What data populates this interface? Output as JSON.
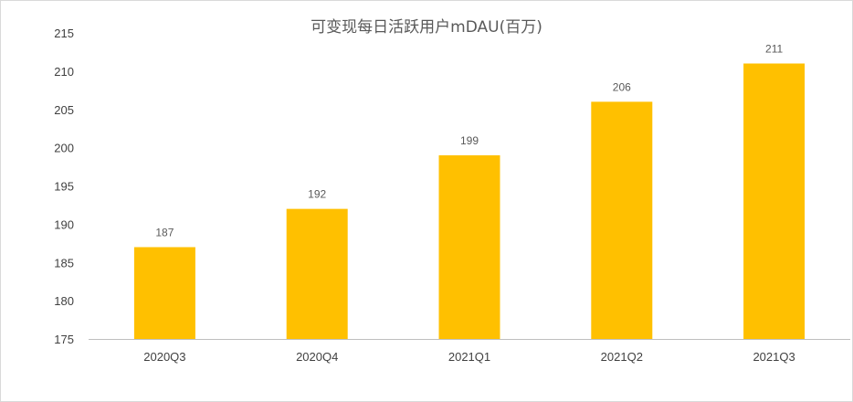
{
  "chart_data": {
    "type": "bar",
    "title": "可变现每日活跃用户mDAU(百万)",
    "categories": [
      "2020Q3",
      "2020Q4",
      "2021Q1",
      "2021Q2",
      "2021Q3"
    ],
    "values": [
      187,
      192,
      199,
      206,
      211
    ],
    "data_labels": [
      "187",
      "192",
      "199",
      "206",
      "211"
    ],
    "ylim": [
      175,
      215
    ],
    "yticks": [
      175,
      180,
      185,
      190,
      195,
      200,
      205,
      210,
      215
    ],
    "ytick_labels": [
      "175",
      "180",
      "185",
      "190",
      "195",
      "200",
      "205",
      "210",
      "215"
    ],
    "xlabel": "",
    "ylabel": "",
    "grid": false,
    "legend": "none",
    "bar_color": "#FFC000",
    "axis_color": "#bfbfbf"
  }
}
